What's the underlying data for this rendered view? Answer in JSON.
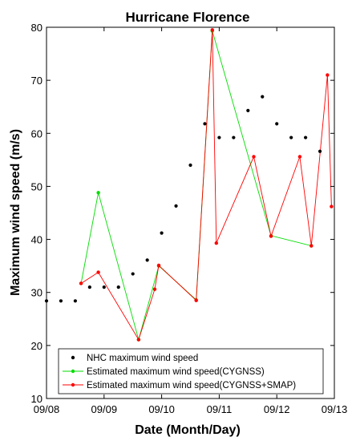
{
  "chart_data": {
    "type": "line",
    "title": "Hurricane Florence",
    "xlabel": "Date (Month/Day)",
    "ylabel": "Maximum wind speed (m/s)",
    "xlim": [
      "09/08",
      "09/13"
    ],
    "ylim": [
      10,
      80
    ],
    "x_ticks": [
      "09/08",
      "09/09",
      "09/10",
      "09/11",
      "09/12",
      "09/13"
    ],
    "y_ticks": [
      10,
      20,
      30,
      40,
      50,
      60,
      70,
      80
    ],
    "grid": false,
    "legend_position": "bottom-left",
    "series": [
      {
        "name": "NHC maximum wind speed",
        "style": "markers",
        "color": "#000000",
        "points": [
          {
            "x": "09/08 00:00",
            "y": 28.4
          },
          {
            "x": "09/08 06:00",
            "y": 28.4
          },
          {
            "x": "09/08 12:00",
            "y": 28.4
          },
          {
            "x": "09/08 18:00",
            "y": 31.0
          },
          {
            "x": "09/09 00:00",
            "y": 31.0
          },
          {
            "x": "09/09 06:00",
            "y": 31.0
          },
          {
            "x": "09/09 12:00",
            "y": 33.5
          },
          {
            "x": "09/09 18:00",
            "y": 36.1
          },
          {
            "x": "09/10 00:00",
            "y": 41.2
          },
          {
            "x": "09/10 06:00",
            "y": 46.3
          },
          {
            "x": "09/10 12:00",
            "y": 54.0
          },
          {
            "x": "09/10 18:00",
            "y": 61.8
          },
          {
            "x": "09/11 00:00",
            "y": 59.2
          },
          {
            "x": "09/11 06:00",
            "y": 59.2
          },
          {
            "x": "09/11 12:00",
            "y": 64.3
          },
          {
            "x": "09/11 18:00",
            "y": 66.9
          },
          {
            "x": "09/12 00:00",
            "y": 61.8
          },
          {
            "x": "09/12 06:00",
            "y": 59.2
          },
          {
            "x": "09/12 12:00",
            "y": 59.2
          },
          {
            "x": "09/12 18:00",
            "y": 56.6
          }
        ]
      },
      {
        "name": "Estimated maximum wind speed(CYGNSS)",
        "style": "line-markers",
        "color": "#00dd00",
        "points": [
          {
            "x": "09/08 14:24",
            "y": 31.7
          },
          {
            "x": "09/08 21:36",
            "y": 48.8
          },
          {
            "x": "09/09 14:24",
            "y": 21.1
          },
          {
            "x": "09/09 22:48",
            "y": 35.0
          },
          {
            "x": "09/10 14:24",
            "y": 28.6
          },
          {
            "x": "09/10 21:07",
            "y": 79.3
          },
          {
            "x": "09/11 21:36",
            "y": 40.7
          },
          {
            "x": "09/12 14:24",
            "y": 38.8
          }
        ]
      },
      {
        "name": "Estimated maximum wind speed(CYGNSS+SMAP)",
        "style": "line-markers",
        "color": "#ff0000",
        "points": [
          {
            "x": "09/08 14:24",
            "y": 31.7
          },
          {
            "x": "09/08 21:36",
            "y": 33.8
          },
          {
            "x": "09/09 14:24",
            "y": 21.1
          },
          {
            "x": "09/09 21:07",
            "y": 30.6
          },
          {
            "x": "09/09 22:48",
            "y": 35.1
          },
          {
            "x": "09/10 14:24",
            "y": 28.5
          },
          {
            "x": "09/10 21:07",
            "y": 79.5
          },
          {
            "x": "09/10 22:48",
            "y": 39.3
          },
          {
            "x": "09/11 14:24",
            "y": 55.6
          },
          {
            "x": "09/11 21:36",
            "y": 40.6
          },
          {
            "x": "09/12 09:36",
            "y": 55.6
          },
          {
            "x": "09/12 14:24",
            "y": 38.8
          },
          {
            "x": "09/12 21:07",
            "y": 71.0
          },
          {
            "x": "09/12 22:48",
            "y": 46.2
          }
        ]
      }
    ]
  }
}
